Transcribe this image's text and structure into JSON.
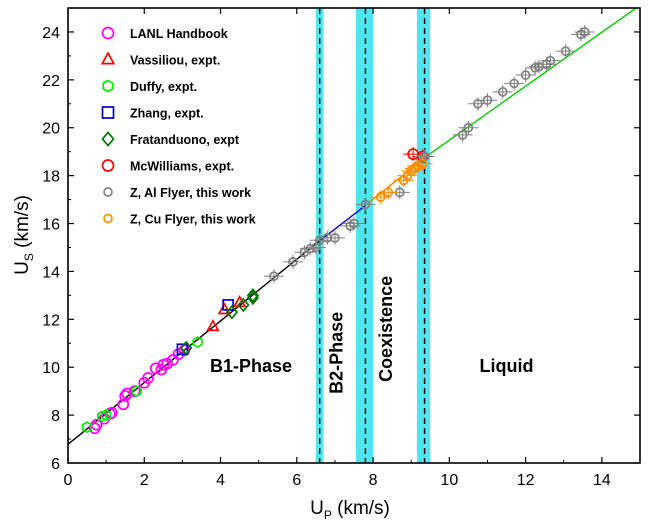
{
  "chart_data": {
    "type": "scatter",
    "xlabel_main": "U",
    "xlabel_sub": "P",
    "xlabel_unit": " (km/s)",
    "ylabel_main": "U",
    "ylabel_sub": "S",
    "ylabel_unit": " (km/s)",
    "xlim": [
      0,
      15
    ],
    "ylim": [
      6,
      25
    ],
    "xticks": [
      0,
      2,
      4,
      6,
      8,
      10,
      12,
      14
    ],
    "yticks": [
      6,
      8,
      10,
      12,
      14,
      16,
      18,
      20,
      22,
      24
    ],
    "legend_position": "top-left",
    "phase_labels": [
      {
        "text": "B1-Phase",
        "x": 4.8,
        "y": 9.8,
        "rotate": 0
      },
      {
        "text": "B2-Phase",
        "x": 7.2,
        "y": 10.6,
        "rotate": -90
      },
      {
        "text": "Coexistence",
        "x": 8.5,
        "y": 11.6,
        "rotate": -90
      },
      {
        "text": "Liquid",
        "x": 11.5,
        "y": 9.8,
        "rotate": 0
      }
    ],
    "boundaries": [
      {
        "x": 6.6,
        "band": [
          6.5,
          6.7
        ]
      },
      {
        "x": 7.8,
        "band": [
          7.55,
          8.0
        ]
      },
      {
        "x": 9.35,
        "band": [
          9.15,
          9.5
        ]
      }
    ],
    "fits": [
      {
        "color": "#000000",
        "x": [
          0,
          6.6
        ],
        "y": [
          6.78,
          15.28
        ]
      },
      {
        "color": "#0000cc",
        "x": [
          6.6,
          7.8
        ],
        "y": [
          15.28,
          16.75
        ]
      },
      {
        "color": "#ff7f00",
        "x": [
          7.8,
          9.35
        ],
        "y": [
          16.75,
          18.75
        ]
      },
      {
        "color": "#00cc00",
        "x": [
          9.35,
          14.9
        ],
        "y": [
          18.75,
          25.0
        ]
      }
    ],
    "series": [
      {
        "name": "LANL Handbook",
        "marker": "circle",
        "color": "#ff00ff",
        "x": [
          0.7,
          0.75,
          0.95,
          1.1,
          1.15,
          1.45,
          1.5,
          1.55,
          1.75,
          2.0,
          2.1,
          2.3,
          2.45,
          2.5,
          2.6,
          2.75,
          2.9,
          3.05
        ],
        "y": [
          7.45,
          7.6,
          7.85,
          8.05,
          8.1,
          8.45,
          8.8,
          8.9,
          9.0,
          9.35,
          9.55,
          9.95,
          9.9,
          10.1,
          10.15,
          10.3,
          10.55,
          10.7
        ]
      },
      {
        "name": "Vassiliou, expt.",
        "marker": "triangle",
        "color": "#ff0000",
        "x": [
          3.8,
          4.1,
          4.5
        ],
        "y": [
          11.7,
          12.4,
          12.7
        ]
      },
      {
        "name": "Duffy, expt.",
        "marker": "hexagon",
        "color": "#00ee00",
        "x": [
          0.5,
          0.9,
          1.0,
          1.8,
          3.4
        ],
        "y": [
          7.5,
          7.95,
          8.0,
          9.0,
          11.05
        ]
      },
      {
        "name": "Zhang, expt.",
        "marker": "square",
        "color": "#0000cc",
        "x": [
          3.0,
          4.2
        ],
        "y": [
          10.75,
          12.6
        ]
      },
      {
        "name": "Fratanduono, expt",
        "marker": "diamond",
        "color": "#007700",
        "x": [
          3.1,
          4.3,
          4.6,
          4.85,
          4.85
        ],
        "y": [
          10.8,
          12.3,
          12.6,
          12.9,
          13.0
        ]
      },
      {
        "name": "McWilliams, expt.",
        "marker": "circle",
        "color": "#ff0000",
        "x": [
          9.05,
          9.3
        ],
        "y": [
          18.9,
          18.8
        ]
      },
      {
        "name": "Z, Al Flyer, this work",
        "marker": "circle",
        "color": "#808080",
        "x": [
          5.4,
          5.9,
          6.2,
          6.35,
          6.5,
          6.6,
          6.8,
          7.0,
          7.4,
          7.5,
          7.8,
          8.7,
          9.35,
          10.35,
          10.5,
          10.75,
          11.0,
          11.4,
          11.7,
          12.0,
          12.25,
          12.35,
          12.55,
          12.65,
          13.05,
          13.45,
          13.55
        ],
        "y": [
          13.8,
          14.4,
          14.8,
          14.95,
          15.0,
          15.3,
          15.4,
          15.4,
          15.9,
          16.0,
          16.8,
          17.3,
          18.8,
          19.7,
          20.0,
          21.0,
          21.15,
          21.5,
          21.85,
          22.2,
          22.5,
          22.55,
          22.65,
          22.8,
          23.2,
          23.9,
          24.0
        ]
      },
      {
        "name": "Z, Cu Flyer, this work",
        "marker": "circle",
        "color": "#ff8c00",
        "x": [
          8.2,
          8.4,
          8.8,
          8.9,
          9.0,
          9.1,
          9.15,
          9.3
        ],
        "y": [
          17.1,
          17.3,
          17.8,
          18.0,
          18.2,
          18.3,
          18.4,
          18.5
        ]
      }
    ]
  }
}
